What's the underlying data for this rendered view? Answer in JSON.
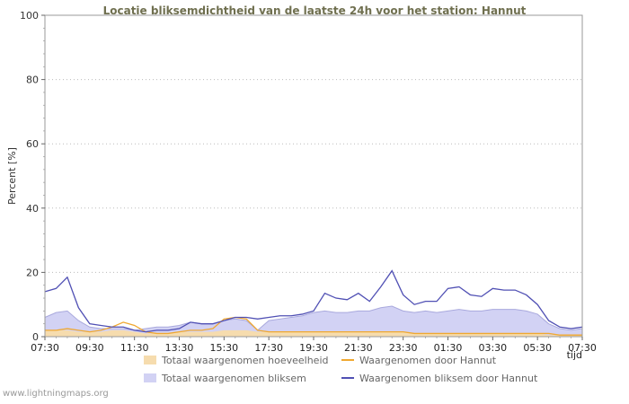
{
  "chart_data": {
    "type": "line",
    "title": "Locatie bliksemdichtheid van de laatste 24h voor het station: Hannut",
    "title_color": "#6f6f4f",
    "ylabel": "Percent  [%]",
    "xlabel": "tijd",
    "ylim": [
      0,
      100
    ],
    "y_ticks": [
      0,
      20,
      40,
      60,
      80,
      100
    ],
    "grid": "dotted-horizontal",
    "legend_position": "bottom",
    "x_tick_labels": [
      "07:30",
      "09:30",
      "11:30",
      "13:30",
      "15:30",
      "17:30",
      "19:30",
      "21:30",
      "23:30",
      "01:30",
      "03:30",
      "05:30",
      "07:30"
    ],
    "x_tick_indices": [
      0,
      4,
      8,
      12,
      16,
      20,
      24,
      28,
      32,
      36,
      40,
      44,
      48
    ],
    "x_labels_all": [
      "07:30",
      "08:00",
      "08:30",
      "09:00",
      "09:30",
      "10:00",
      "10:30",
      "11:00",
      "11:30",
      "12:00",
      "12:30",
      "13:00",
      "13:30",
      "14:00",
      "14:30",
      "15:00",
      "15:30",
      "16:00",
      "16:30",
      "17:00",
      "17:30",
      "18:00",
      "18:30",
      "19:00",
      "19:30",
      "20:00",
      "20:30",
      "21:00",
      "21:30",
      "22:00",
      "22:30",
      "23:00",
      "23:30",
      "00:00",
      "00:30",
      "01:00",
      "01:30",
      "02:00",
      "02:30",
      "03:00",
      "03:30",
      "04:00",
      "04:30",
      "05:00",
      "05:30",
      "06:00",
      "06:30",
      "07:00",
      "07:30"
    ],
    "series": [
      {
        "id": "totaal-waargenomen-bliksem",
        "name": "Totaal waargenomen bliksem",
        "type": "area",
        "color": "#d2d2f4",
        "edge": "#a9a9dd",
        "values": [
          6,
          7.5,
          8,
          5,
          3,
          2.5,
          2.5,
          2.5,
          2,
          2.5,
          3,
          3,
          3.5,
          4.5,
          4,
          4,
          5,
          5.5,
          5,
          2,
          5,
          5.5,
          6,
          6.5,
          7.5,
          8,
          7.5,
          7.5,
          8,
          8,
          9,
          9.5,
          8,
          7.5,
          8,
          7.5,
          8,
          8.5,
          8,
          8,
          8.5,
          8.5,
          8.5,
          8,
          7,
          4,
          2.5,
          2,
          2.5
        ]
      },
      {
        "id": "totaal-waargenomen-hoeveelheid",
        "name": "Totaal waargenomen hoeveelheid",
        "type": "area",
        "color": "#f6dcae",
        "values": [
          2,
          2,
          2,
          1.5,
          1.5,
          1.5,
          2,
          2,
          1.5,
          1,
          1,
          1,
          1.5,
          1.5,
          1.5,
          1.5,
          2,
          2,
          2,
          1.5,
          1.5,
          1.5,
          1.5,
          1.5,
          1.5,
          1.5,
          1.5,
          1.5,
          1.5,
          1.5,
          1.5,
          1.5,
          1.5,
          1,
          1,
          1,
          1,
          1,
          1,
          1,
          1,
          1,
          1,
          1,
          1,
          0.5,
          0.5,
          0.5,
          0.5
        ]
      },
      {
        "id": "waargenomen-door-hannut",
        "name": "Waargenomen door Hannut",
        "type": "line",
        "color": "#f0a830",
        "values": [
          2,
          2,
          2.5,
          2,
          1.5,
          2,
          3,
          4.5,
          3.5,
          1.5,
          1,
          1,
          1.5,
          2,
          2,
          2.5,
          5.5,
          6,
          5.5,
          2,
          1.5,
          1.5,
          1.5,
          1.5,
          1.5,
          1.5,
          1.5,
          1.5,
          1.5,
          1.5,
          1.5,
          1.5,
          1.5,
          1,
          1,
          1,
          1,
          1,
          1,
          1,
          1,
          1,
          1,
          1,
          1,
          1,
          0.5,
          0.5,
          0.5
        ]
      },
      {
        "id": "waargenomen-bliksem-door-hannut",
        "name": "Waargenomen bliksem door Hannut",
        "type": "line",
        "color": "#5050b4",
        "values": [
          14,
          15,
          18.5,
          9,
          4,
          3.5,
          3,
          3,
          2,
          1.5,
          2,
          2,
          2.5,
          4.5,
          4,
          4,
          5,
          6,
          6,
          5.5,
          6,
          6.5,
          6.5,
          7,
          8,
          13.5,
          12,
          11.5,
          13.5,
          11,
          15.5,
          20.5,
          13,
          10,
          11,
          11,
          15,
          15.5,
          13,
          12.5,
          15,
          14.5,
          14.5,
          13,
          10,
          5,
          3,
          2.5,
          3
        ]
      }
    ],
    "legend": [
      {
        "label": "Totaal waargenomen hoeveelheid",
        "type": "area",
        "color": "#f6dcae"
      },
      {
        "label": "Waargenomen door Hannut",
        "type": "line",
        "color": "#f0a830"
      },
      {
        "label": "Totaal waargenomen bliksem",
        "type": "area",
        "color": "#d2d2f4"
      },
      {
        "label": "Waargenomen bliksem door Hannut",
        "type": "line",
        "color": "#5050b4"
      }
    ]
  },
  "footer": {
    "watermark": "www.lightningmaps.org"
  }
}
